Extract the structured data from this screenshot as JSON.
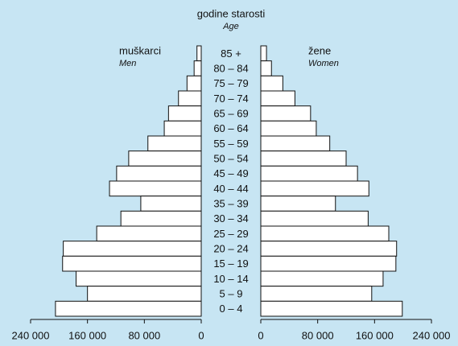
{
  "chart_data": {
    "type": "pyramid",
    "title": "godine starosti",
    "subtitle": "Age",
    "categories": [
      "85 +",
      "80 – 84",
      "75 – 79",
      "70 – 74",
      "65 – 69",
      "60 – 64",
      "55 – 59",
      "50 – 54",
      "45 – 49",
      "40 – 44",
      "35 – 39",
      "30 – 34",
      "25 – 29",
      "20 – 24",
      "15 – 19",
      "10 – 14",
      "5 – 9",
      "0 – 4"
    ],
    "series": [
      {
        "name": "muškarci",
        "name_en": "Men",
        "color": "#ffffff",
        "values": [
          6000,
          10000,
          20000,
          32000,
          46000,
          52000,
          75000,
          102000,
          119000,
          129000,
          85000,
          113000,
          147000,
          194000,
          195000,
          176000,
          160000,
          205000
        ]
      },
      {
        "name": "žene",
        "name_en": "Women",
        "color": "#ffffff",
        "values": [
          8000,
          15000,
          31000,
          48000,
          70000,
          78000,
          97000,
          120000,
          136000,
          152000,
          105000,
          151000,
          180000,
          191000,
          190000,
          172000,
          156000,
          199000
        ]
      }
    ],
    "xlim": [
      0,
      240000
    ],
    "xticks": [
      0,
      {
        "value": 80000,
        "label": "80 000"
      },
      {
        "value": 160000,
        "label": "160 000"
      },
      {
        "value": 240000,
        "label": "240 000"
      }
    ]
  }
}
